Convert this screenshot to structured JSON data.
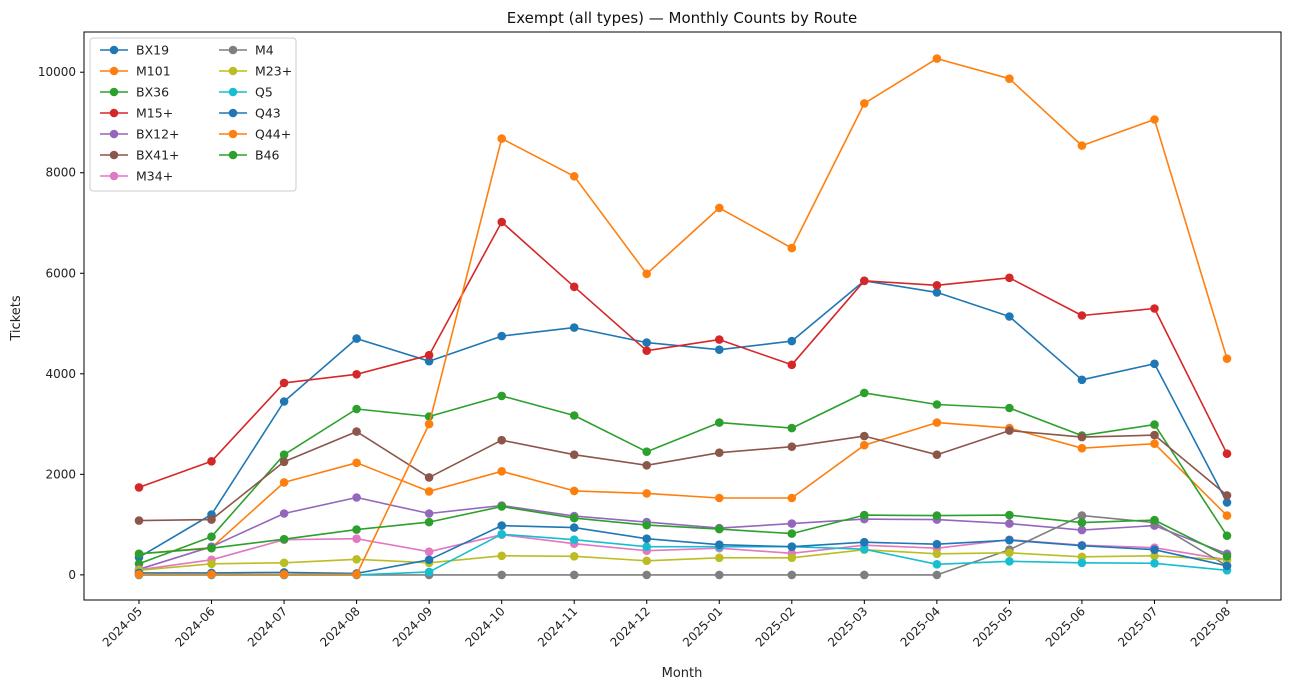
{
  "chart_data": {
    "type": "line",
    "title": "Exempt (all types) — Monthly Counts by Route",
    "xlabel": "Month",
    "ylabel": "Tickets",
    "ylim": [
      -500,
      10800
    ],
    "yticks": [
      0,
      2000,
      4000,
      6000,
      8000,
      10000
    ],
    "grid": false,
    "legend_position": "top-left",
    "categories": [
      "2024-05",
      "2024-06",
      "2024-07",
      "2024-08",
      "2024-09",
      "2024-10",
      "2024-11",
      "2024-12",
      "2025-01",
      "2025-02",
      "2025-03",
      "2025-04",
      "2025-05",
      "2025-06",
      "2025-07",
      "2025-08"
    ],
    "series": [
      {
        "name": "BX19",
        "color": "#1f77b4",
        "values": [
          350,
          1200,
          3450,
          4700,
          4250,
          4750,
          4920,
          4620,
          4480,
          4650,
          5850,
          5620,
          5140,
          3880,
          4200,
          1440
        ]
      },
      {
        "name": "M101",
        "color": "#ff7f0e",
        "values": [
          420,
          540,
          1840,
          2230,
          1660,
          2060,
          1670,
          1620,
          1530,
          1530,
          2580,
          3030,
          2920,
          2520,
          2610,
          1180
        ]
      },
      {
        "name": "BX36",
        "color": "#2ca02c",
        "values": [
          220,
          760,
          2390,
          3300,
          3150,
          3560,
          3170,
          2450,
          3030,
          2920,
          3620,
          3390,
          3320,
          2770,
          2990,
          780
        ]
      },
      {
        "name": "M15+",
        "color": "#d62728",
        "values": [
          1740,
          2260,
          3820,
          3990,
          4370,
          7020,
          5730,
          4460,
          4680,
          4180,
          5850,
          5760,
          5910,
          5160,
          5300,
          2410
        ]
      },
      {
        "name": "BX12+",
        "color": "#9467bd",
        "values": [
          110,
          560,
          1220,
          1540,
          1220,
          1380,
          1170,
          1050,
          930,
          1020,
          1110,
          1100,
          1020,
          890,
          980,
          420
        ]
      },
      {
        "name": "BX41+",
        "color": "#8c564b",
        "values": [
          1080,
          1100,
          2250,
          2850,
          1940,
          2680,
          2390,
          2180,
          2430,
          2550,
          2760,
          2390,
          2870,
          2740,
          2780,
          1580
        ]
      },
      {
        "name": "M34+",
        "color": "#e377c2",
        "values": [
          100,
          300,
          700,
          720,
          460,
          800,
          620,
          480,
          530,
          430,
          590,
          530,
          700,
          590,
          540,
          300
        ]
      },
      {
        "name": "M4",
        "color": "#7f7f7f",
        "values": [
          0,
          0,
          0,
          0,
          0,
          0,
          0,
          0,
          0,
          0,
          0,
          0,
          500,
          1180,
          1040,
          180
        ]
      },
      {
        "name": "M23+",
        "color": "#bcbd22",
        "values": [
          90,
          220,
          240,
          310,
          240,
          380,
          370,
          280,
          340,
          340,
          500,
          420,
          440,
          360,
          380,
          300
        ]
      },
      {
        "name": "Q5",
        "color": "#17becf",
        "values": [
          0,
          0,
          0,
          0,
          60,
          810,
          700,
          560,
          560,
          560,
          510,
          210,
          270,
          240,
          230,
          90
        ]
      },
      {
        "name": "Q43",
        "color": "#1f77b4",
        "values": [
          40,
          40,
          50,
          30,
          300,
          980,
          940,
          720,
          600,
          560,
          650,
          610,
          690,
          580,
          500,
          180
        ]
      },
      {
        "name": "Q44+",
        "color": "#ff7f0e",
        "values": [
          10,
          10,
          10,
          10,
          3000,
          8680,
          7930,
          5990,
          7300,
          6500,
          9380,
          10270,
          9870,
          8540,
          9060,
          4300
        ]
      },
      {
        "name": "B46",
        "color": "#2ca02c",
        "values": [
          420,
          530,
          710,
          900,
          1050,
          1360,
          1130,
          990,
          910,
          820,
          1190,
          1180,
          1190,
          1040,
          1090,
          370
        ]
      }
    ]
  }
}
